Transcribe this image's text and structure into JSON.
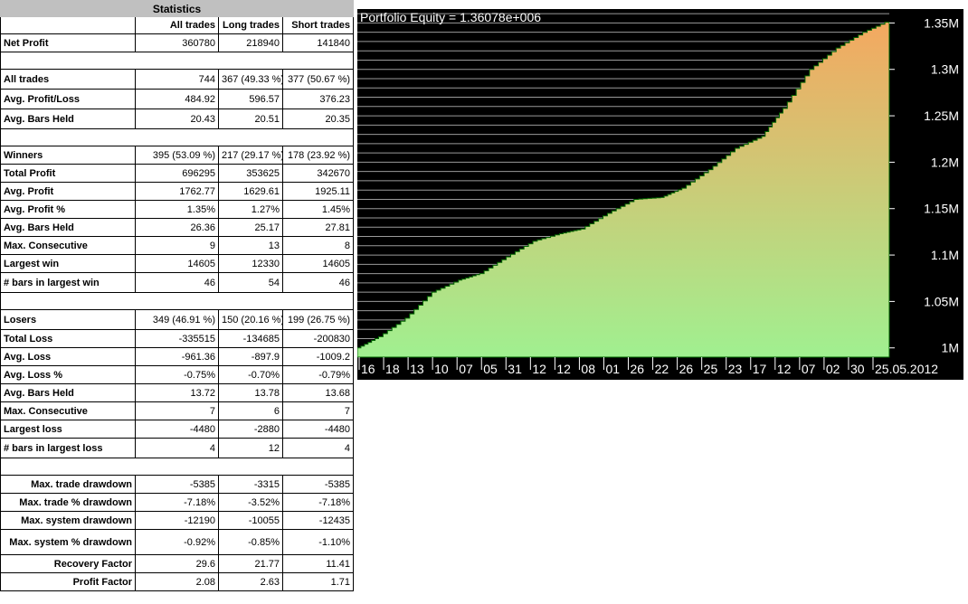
{
  "stats": {
    "title": "Statistics",
    "headers": [
      "",
      "All trades",
      "Long trades",
      "Short trades"
    ],
    "rows": [
      {
        "label": "Net Profit",
        "values": [
          "360780",
          "218940",
          "141840"
        ]
      },
      {
        "label": "All trades",
        "values": [
          "744",
          "367 (49.33 %)",
          "377 (50.67 %)"
        ]
      },
      {
        "label": "Avg. Profit/Loss",
        "values": [
          "484.92",
          "596.57",
          "376.23"
        ]
      },
      {
        "label": "Avg. Bars Held",
        "values": [
          "20.43",
          "20.51",
          "20.35"
        ]
      },
      {
        "label": "Winners",
        "values": [
          "395 (53.09 %)",
          "217 (29.17 %)",
          "178 (23.92 %)"
        ]
      },
      {
        "label": "Total Profit",
        "values": [
          "696295",
          "353625",
          "342670"
        ]
      },
      {
        "label": "Avg. Profit",
        "values": [
          "1762.77",
          "1629.61",
          "1925.11"
        ]
      },
      {
        "label": "Avg. Profit %",
        "values": [
          "1.35%",
          "1.27%",
          "1.45%"
        ]
      },
      {
        "label": "Avg. Bars Held",
        "values": [
          "26.36",
          "25.17",
          "27.81"
        ]
      },
      {
        "label": "Max. Consecutive",
        "values": [
          "9",
          "13",
          "8"
        ]
      },
      {
        "label": "Largest win",
        "values": [
          "14605",
          "12330",
          "14605"
        ]
      },
      {
        "label": "# bars in largest win",
        "values": [
          "46",
          "54",
          "46"
        ]
      },
      {
        "label": "Losers",
        "values": [
          "349 (46.91 %)",
          "150 (20.16 %)",
          "199 (26.75 %)"
        ]
      },
      {
        "label": "Total Loss",
        "values": [
          "-335515",
          "-134685",
          "-200830"
        ]
      },
      {
        "label": "Avg. Loss",
        "values": [
          "-961.36",
          "-897.9",
          "-1009.2"
        ]
      },
      {
        "label": "Avg. Loss %",
        "values": [
          "-0.75%",
          "-0.70%",
          "-0.79%"
        ]
      },
      {
        "label": "Avg. Bars Held",
        "values": [
          "13.72",
          "13.78",
          "13.68"
        ]
      },
      {
        "label": "Max. Consecutive",
        "values": [
          "7",
          "6",
          "7"
        ]
      },
      {
        "label": "Largest loss",
        "values": [
          "-4480",
          "-2880",
          "-4480"
        ]
      },
      {
        "label": "# bars in largest loss",
        "values": [
          "4",
          "12",
          "4"
        ]
      },
      {
        "label": "Max. trade drawdown",
        "values": [
          "-5385",
          "-3315",
          "-5385"
        ]
      },
      {
        "label": "Max. trade % drawdown",
        "values": [
          "-7.18%",
          "-3.52%",
          "-7.18%"
        ]
      },
      {
        "label": "Max. system drawdown",
        "values": [
          "-12190",
          "-10055",
          "-12435"
        ]
      },
      {
        "label": "Max. system % drawdown",
        "values": [
          "-0.92%",
          "-0.85%",
          "-1.10%"
        ]
      },
      {
        "label": "Recovery Factor",
        "values": [
          "29.6",
          "21.77",
          "11.41"
        ]
      },
      {
        "label": "Profit Factor",
        "values": [
          "2.08",
          "2.63",
          "1.71"
        ]
      }
    ]
  },
  "chart_data": {
    "type": "area",
    "title": "Portfolio Equity = 1.36078e+006",
    "ylim": [
      990000,
      1365000
    ],
    "y_ticks": [
      1000000,
      1050000,
      1100000,
      1150000,
      1200000,
      1250000,
      1300000,
      1350000
    ],
    "y_tick_labels": [
      "1M",
      "1.05M",
      "1.1M",
      "1.15M",
      "1.2M",
      "1.25M",
      "1.3M",
      "1.35M"
    ],
    "x_tick_labels": [
      "16",
      "18",
      "13",
      "10",
      "07",
      "05",
      "31",
      "12",
      "12",
      "08",
      "01",
      "26",
      "22",
      "26",
      "25",
      "23",
      "17",
      "12",
      "07",
      "02",
      "30",
      "25.05.2012"
    ],
    "grid": true,
    "colors": {
      "background": "#000000",
      "fill_low": "#a0f090",
      "fill_high": "#f4a860",
      "grid": "#9a9a9a",
      "text": "#ffffff",
      "line": "#006400"
    },
    "series": [
      {
        "x": [
          0,
          4,
          9,
          14,
          19,
          23,
          28,
          33,
          38,
          42,
          47,
          52,
          57,
          61,
          66,
          71,
          76,
          80,
          85,
          90,
          95,
          100
        ],
        "values": [
          1000000,
          1012000,
          1032000,
          1060000,
          1073000,
          1080000,
          1098000,
          1115000,
          1123000,
          1128000,
          1145000,
          1160000,
          1162000,
          1172000,
          1192000,
          1215000,
          1228000,
          1258000,
          1300000,
          1323000,
          1340000,
          1353000
        ]
      }
    ]
  }
}
